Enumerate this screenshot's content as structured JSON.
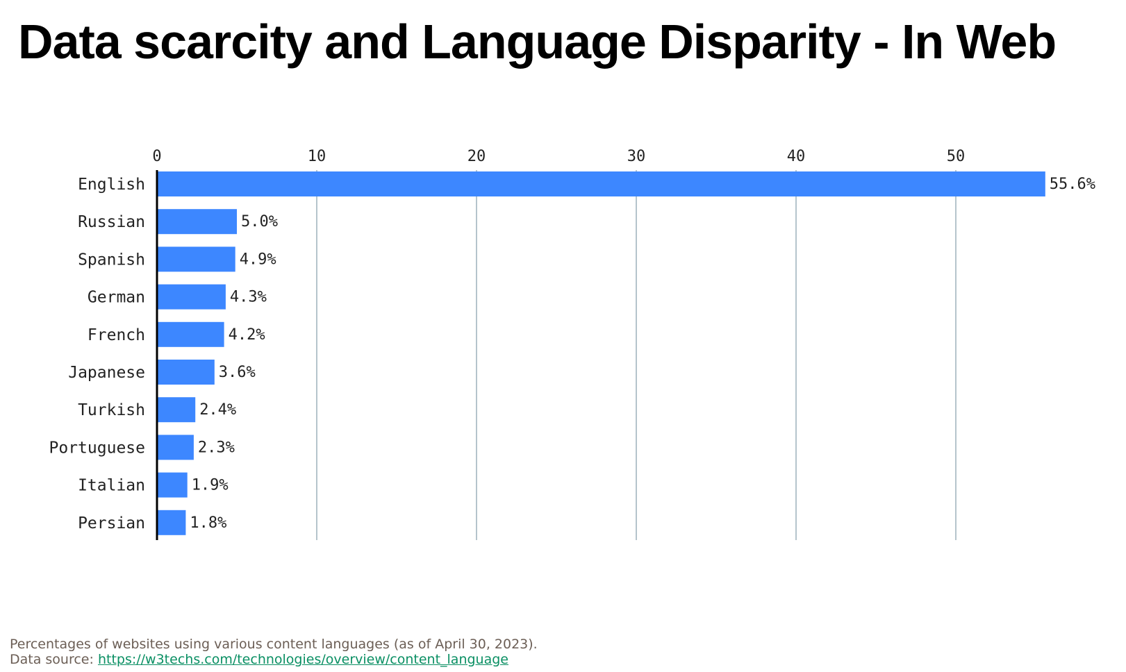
{
  "slide": {
    "title": "Data scarcity and Language Disparity - In Web",
    "caption_line1": "Percentages of websites using various content languages (as of April 30, 2023).",
    "source_prefix": "Data source: ",
    "source_link": "https://w3techs.com/technologies/overview/content_language"
  },
  "colors": {
    "bar": "#3d87ff",
    "grid": "#b5c4cc",
    "axis": "#000000",
    "text": "#222222",
    "link": "#0a8f63"
  },
  "chart_data": {
    "type": "bar",
    "orientation": "horizontal",
    "categories": [
      "English",
      "Russian",
      "Spanish",
      "German",
      "French",
      "Japanese",
      "Turkish",
      "Portuguese",
      "Italian",
      "Persian"
    ],
    "values": [
      55.6,
      5.0,
      4.9,
      4.3,
      4.2,
      3.6,
      2.4,
      2.3,
      1.9,
      1.8
    ],
    "value_labels": [
      "55.6%",
      "5.0%",
      "4.9%",
      "4.3%",
      "4.2%",
      "3.6%",
      "2.4%",
      "2.3%",
      "1.9%",
      "1.8%"
    ],
    "x_ticks": [
      0,
      10,
      20,
      30,
      40,
      50
    ],
    "x_tick_labels": [
      "0",
      "10",
      "20",
      "30",
      "40",
      "50"
    ],
    "xlim": [
      0,
      55.6
    ],
    "axis_position": "top",
    "grid": true,
    "title": "",
    "xlabel": "",
    "ylabel": ""
  }
}
